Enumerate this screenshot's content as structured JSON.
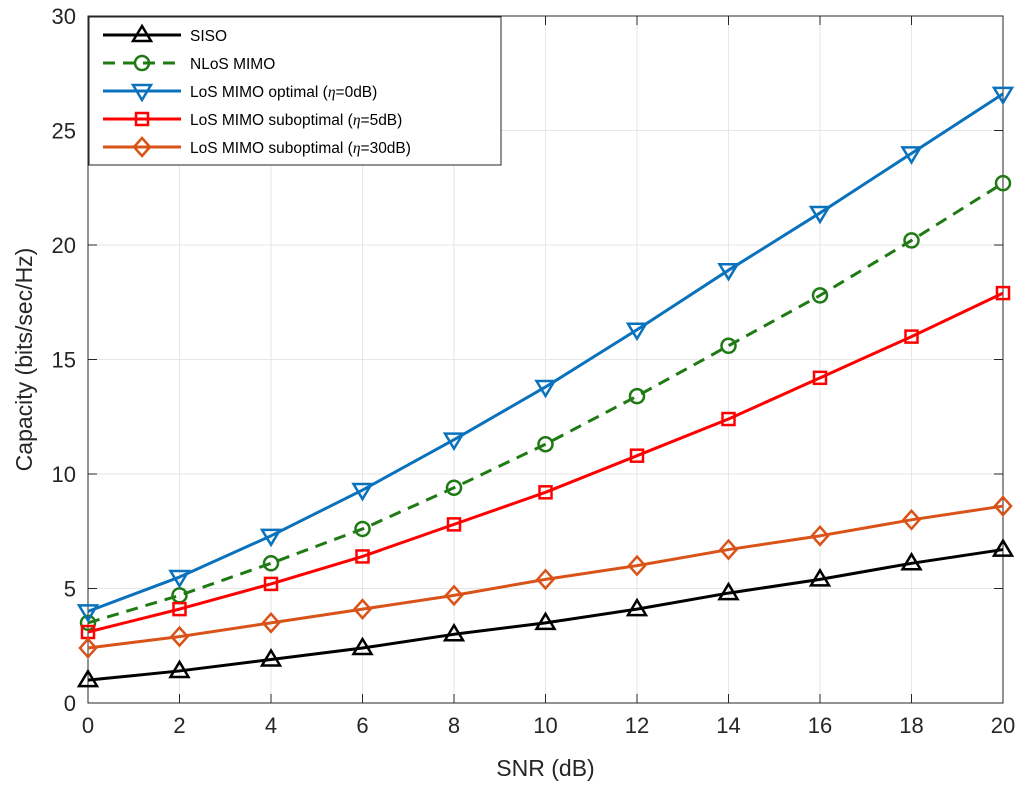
{
  "chart_data": {
    "type": "line",
    "title": "",
    "xlabel": "SNR (dB)",
    "ylabel": "Capacity (bits/sec/Hz)",
    "xlim": [
      0,
      20
    ],
    "ylim": [
      0,
      30
    ],
    "xticks": [
      0,
      2,
      4,
      6,
      8,
      10,
      12,
      14,
      16,
      18,
      20
    ],
    "yticks": [
      0,
      5,
      10,
      15,
      20,
      25,
      30
    ],
    "grid": true,
    "legend_position": "top-left",
    "x": [
      0,
      2,
      4,
      6,
      8,
      10,
      12,
      14,
      16,
      18,
      20
    ],
    "series": [
      {
        "name": "SISO",
        "color": "#000000",
        "line_style": "solid",
        "marker": "triangle-up",
        "values": [
          1.0,
          1.4,
          1.9,
          2.4,
          3.0,
          3.5,
          4.1,
          4.8,
          5.4,
          6.1,
          6.7
        ]
      },
      {
        "name": "NLoS MIMO",
        "color": "#1f7a14",
        "line_style": "dashed",
        "marker": "circle",
        "values": [
          3.5,
          4.7,
          6.1,
          7.6,
          9.4,
          11.3,
          13.4,
          15.6,
          17.8,
          20.2,
          22.7
        ]
      },
      {
        "name": "LoS MIMO optimal (",
        "name_symbol": "η",
        "name_suffix": "=0dB)",
        "color": "#0a72bd",
        "line_style": "solid",
        "marker": "triangle-down",
        "values": [
          4.0,
          5.5,
          7.3,
          9.3,
          11.5,
          13.8,
          16.3,
          18.9,
          21.4,
          24.0,
          26.6
        ]
      },
      {
        "name": "LoS MIMO suboptimal (",
        "name_symbol": "η",
        "name_suffix": "=5dB)",
        "color": "#ff0000",
        "line_style": "solid",
        "marker": "square",
        "values": [
          3.1,
          4.1,
          5.2,
          6.4,
          7.8,
          9.2,
          10.8,
          12.4,
          14.2,
          16.0,
          17.9
        ]
      },
      {
        "name": "LoS MIMO suboptimal (",
        "name_symbol": "η",
        "name_suffix": "=30dB)",
        "color": "#d95319",
        "line_style": "solid",
        "marker": "diamond",
        "values": [
          2.4,
          2.9,
          3.5,
          4.1,
          4.7,
          5.4,
          6.0,
          6.7,
          7.3,
          8.0,
          8.6
        ]
      }
    ]
  }
}
